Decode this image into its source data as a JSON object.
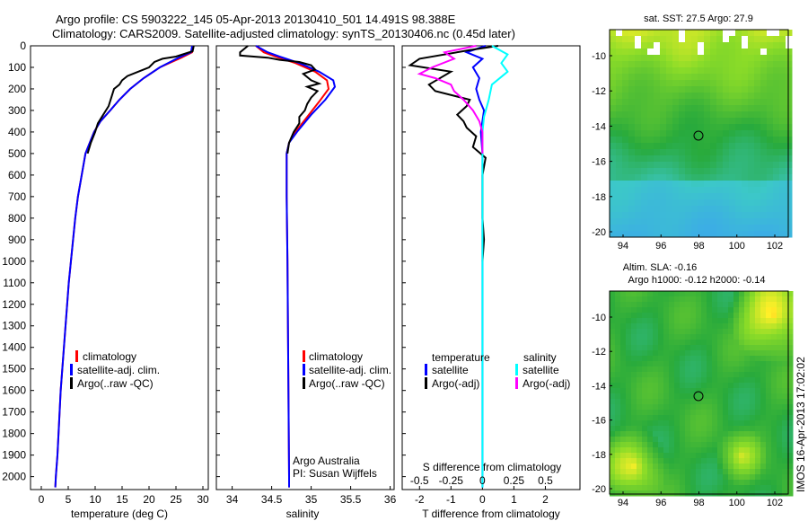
{
  "header": {
    "line1": "Argo profile: CS 5903222_145 05-Apr-2013 20130410_501 14.491S 98.388E",
    "line2": "Climatology: CARS2009. Satellite-adjusted climatology: synTS_20130406.nc (0.45d later)"
  },
  "side_label": "IMOS 16-Apr-2013 17:02:02",
  "colors": {
    "clim": "#ff0000",
    "sat": "#0000ff",
    "argo": "#000000",
    "sat_s": "#00ffff",
    "argo_s": "#ff00ff"
  },
  "chart_data": [
    {
      "type": "line",
      "id": "temperature",
      "xlabel": "temperature (deg C)",
      "ylabel": "",
      "xlim": [
        -2,
        31
      ],
      "ylim": [
        2060,
        0
      ],
      "xticks": [
        0,
        5,
        10,
        15,
        20,
        25,
        30
      ],
      "xtick_labels": [
        "0",
        "5",
        "10",
        "15",
        "20",
        "25",
        "30"
      ],
      "yticks": [
        0,
        100,
        200,
        300,
        400,
        500,
        600,
        700,
        800,
        900,
        1000,
        1100,
        1200,
        1300,
        1400,
        1500,
        1600,
        1700,
        1800,
        1900,
        2000
      ],
      "ytick_labels": [
        "0",
        "100",
        "200",
        "300",
        "400",
        "500",
        "600",
        "700",
        "800",
        "900",
        "1000",
        "1100",
        "1200",
        "1300",
        "1400",
        "1500",
        "1600",
        "1700",
        "1800",
        "1900",
        "2000"
      ],
      "legend": [
        "climatology",
        "satellite-adj. clim.",
        "Argo(..raw -QC)"
      ],
      "series": [
        {
          "name": "climatology",
          "color": "clim",
          "points": [
            [
              28.2,
              0
            ],
            [
              28.0,
              30
            ],
            [
              26,
              55
            ],
            [
              22,
              100
            ],
            [
              19,
              150
            ],
            [
              16.5,
              200
            ],
            [
              14.5,
              250
            ],
            [
              12.8,
              300
            ],
            [
              11,
              350
            ],
            [
              9.8,
              400
            ],
            [
              9,
              450
            ],
            [
              8.2,
              500
            ],
            [
              7.5,
              600
            ],
            [
              6.8,
              700
            ],
            [
              6.3,
              800
            ],
            [
              5.9,
              900
            ],
            [
              5.5,
              1000
            ],
            [
              5.1,
              1100
            ],
            [
              4.8,
              1200
            ],
            [
              4.5,
              1300
            ],
            [
              4.2,
              1400
            ],
            [
              3.9,
              1500
            ],
            [
              3.6,
              1600
            ],
            [
              3.4,
              1700
            ],
            [
              3.2,
              1800
            ],
            [
              3.0,
              1900
            ],
            [
              2.7,
              2000
            ],
            [
              2.6,
              2050
            ]
          ]
        },
        {
          "name": "satellite-adj. clim.",
          "color": "sat",
          "points": [
            [
              28.0,
              0
            ],
            [
              27.8,
              30
            ],
            [
              25.5,
              55
            ],
            [
              22,
              100
            ],
            [
              19,
              150
            ],
            [
              16.5,
              200
            ],
            [
              14.5,
              250
            ],
            [
              12.8,
              300
            ],
            [
              11,
              350
            ],
            [
              9.8,
              400
            ],
            [
              9,
              450
            ],
            [
              8.2,
              500
            ],
            [
              7.5,
              600
            ],
            [
              6.8,
              700
            ],
            [
              6.3,
              800
            ],
            [
              5.9,
              900
            ],
            [
              5.5,
              1000
            ],
            [
              5.1,
              1100
            ],
            [
              4.8,
              1200
            ],
            [
              4.5,
              1300
            ],
            [
              4.2,
              1400
            ],
            [
              3.9,
              1500
            ],
            [
              3.6,
              1600
            ],
            [
              3.4,
              1700
            ],
            [
              3.2,
              1800
            ],
            [
              3.0,
              1900
            ],
            [
              2.7,
              2000
            ],
            [
              2.6,
              2050
            ]
          ]
        },
        {
          "name": "Argo(..raw -QC)",
          "color": "argo",
          "points": [
            [
              28.3,
              0
            ],
            [
              28.1,
              25
            ],
            [
              25,
              50
            ],
            [
              22.5,
              60
            ],
            [
              21,
              75
            ],
            [
              20,
              100
            ],
            [
              18,
              120
            ],
            [
              16,
              140
            ],
            [
              15,
              160
            ],
            [
              14.5,
              180
            ],
            [
              13.5,
              200
            ],
            [
              13,
              240
            ],
            [
              12.5,
              280
            ],
            [
              11.5,
              320
            ],
            [
              10.5,
              360
            ],
            [
              10,
              400
            ],
            [
              9.2,
              450
            ],
            [
              8.6,
              500
            ]
          ]
        }
      ]
    },
    {
      "type": "line",
      "id": "salinity",
      "xlabel": "salinity",
      "xlim": [
        33.8,
        36.05
      ],
      "ylim": [
        2060,
        0
      ],
      "xticks": [
        34,
        34.5,
        35,
        35.5,
        36
      ],
      "xtick_labels": [
        "34",
        "34.5",
        "35",
        "35.5",
        "36"
      ],
      "legend": [
        "climatology",
        "satellite-adj. clim.",
        "Argo(..raw -QC)"
      ],
      "annotation": [
        "Argo Australia",
        "PI: Susan Wijffels"
      ],
      "series": [
        {
          "name": "climatology",
          "color": "clim",
          "points": [
            [
              34.3,
              0
            ],
            [
              34.4,
              30
            ],
            [
              34.55,
              50
            ],
            [
              34.8,
              80
            ],
            [
              35.05,
              120
            ],
            [
              35.2,
              160
            ],
            [
              35.22,
              200
            ],
            [
              35.1,
              260
            ],
            [
              34.95,
              330
            ],
            [
              34.8,
              400
            ],
            [
              34.72,
              450
            ],
            [
              34.69,
              500
            ],
            [
              34.69,
              700
            ],
            [
              34.7,
              1000
            ],
            [
              34.71,
              1500
            ],
            [
              34.72,
              2000
            ],
            [
              34.72,
              2050
            ]
          ]
        },
        {
          "name": "satellite-adj. clim.",
          "color": "sat",
          "points": [
            [
              34.3,
              0
            ],
            [
              34.45,
              30
            ],
            [
              34.6,
              50
            ],
            [
              34.85,
              80
            ],
            [
              35.1,
              120
            ],
            [
              35.28,
              160
            ],
            [
              35.3,
              190
            ],
            [
              35.18,
              250
            ],
            [
              35.0,
              320
            ],
            [
              34.82,
              400
            ],
            [
              34.72,
              450
            ],
            [
              34.69,
              500
            ],
            [
              34.69,
              700
            ],
            [
              34.7,
              1000
            ],
            [
              34.71,
              1500
            ],
            [
              34.72,
              2000
            ],
            [
              34.72,
              2050
            ]
          ]
        },
        {
          "name": "Argo(..raw -QC)",
          "color": "argo",
          "points": [
            [
              34.2,
              0
            ],
            [
              34.1,
              30
            ],
            [
              34.1,
              45
            ],
            [
              34.45,
              55
            ],
            [
              34.6,
              65
            ],
            [
              34.85,
              75
            ],
            [
              35.0,
              90
            ],
            [
              35.05,
              110
            ],
            [
              34.9,
              130
            ],
            [
              35.0,
              160
            ],
            [
              35.1,
              175
            ],
            [
              34.95,
              190
            ],
            [
              35.08,
              210
            ],
            [
              35.0,
              240
            ],
            [
              34.95,
              270
            ],
            [
              34.92,
              300
            ],
            [
              34.85,
              330
            ],
            [
              34.85,
              360
            ],
            [
              34.78,
              400
            ],
            [
              34.72,
              450
            ],
            [
              34.7,
              500
            ]
          ]
        }
      ]
    },
    {
      "type": "line",
      "id": "difference",
      "xlabel": "T difference from climatology",
      "xlabel_top": "S difference from climatology",
      "xlim": [
        -2.55,
        3.1
      ],
      "ylim": [
        2060,
        0
      ],
      "xticks": [
        -2,
        -1,
        0,
        1,
        2
      ],
      "xtick_labels": [
        "-2",
        "-1",
        "0",
        "1",
        "2"
      ],
      "top_ticks": [
        -0.5,
        -0.25,
        0,
        0.25,
        0.5
      ],
      "top_tick_labels": [
        "-0.5",
        "-0.25",
        "0",
        "0.25",
        "0.5"
      ],
      "legend": [
        "temperature",
        "satellite",
        "Argo(-adj)",
        "salinity",
        "satellite",
        "Argo(-adj)"
      ],
      "series": [
        {
          "name": "temperature satellite",
          "color": "sat",
          "points": [
            [
              0.1,
              0
            ],
            [
              -0.5,
              30
            ],
            [
              0,
              60
            ],
            [
              -0.3,
              100
            ],
            [
              -0.1,
              150
            ],
            [
              -0.2,
              200
            ],
            [
              -0.1,
              250
            ],
            [
              0.05,
              300
            ],
            [
              -0.05,
              400
            ],
            [
              0,
              500
            ],
            [
              0,
              700
            ],
            [
              0,
              1000
            ],
            [
              0,
              1500
            ],
            [
              0,
              2050
            ]
          ]
        },
        {
          "name": "temperature Argo(-adj)",
          "color": "argo",
          "points": [
            [
              0.5,
              0
            ],
            [
              -0.4,
              20
            ],
            [
              -2.0,
              60
            ],
            [
              -2.3,
              90
            ],
            [
              -1.0,
              120
            ],
            [
              -1.7,
              180
            ],
            [
              -1.5,
              210
            ],
            [
              -0.4,
              250
            ],
            [
              -0.5,
              280
            ],
            [
              -0.8,
              320
            ],
            [
              -0.6,
              350
            ],
            [
              -0.5,
              380
            ],
            [
              -0.2,
              420
            ],
            [
              -0.3,
              470
            ],
            [
              0.1,
              520
            ],
            [
              0,
              600
            ],
            [
              0,
              800
            ],
            [
              0.05,
              900
            ],
            [
              0,
              1000
            ]
          ]
        },
        {
          "name": "salinity satellite",
          "color": "sat_s",
          "points": [
            [
              0.3,
              0
            ],
            [
              0.8,
              40
            ],
            [
              0.6,
              80
            ],
            [
              0.8,
              120
            ],
            [
              0.3,
              180
            ],
            [
              0.2,
              250
            ],
            [
              0.05,
              330
            ],
            [
              0,
              400
            ],
            [
              0,
              600
            ],
            [
              0,
              1000
            ],
            [
              0,
              1500
            ],
            [
              0,
              2050
            ]
          ]
        },
        {
          "name": "salinity Argo(-adj)",
          "color": "argo_s",
          "points": [
            [
              -0.2,
              0
            ],
            [
              -1.2,
              30
            ],
            [
              -0.9,
              60
            ],
            [
              -1.6,
              100
            ],
            [
              -2.0,
              130
            ],
            [
              -1.5,
              150
            ],
            [
              -1.0,
              180
            ],
            [
              -0.9,
              210
            ],
            [
              -0.6,
              250
            ],
            [
              -0.3,
              300
            ],
            [
              -0.1,
              350
            ],
            [
              0,
              400
            ],
            [
              0,
              500
            ]
          ]
        }
      ]
    }
  ],
  "maps": [
    {
      "id": "sst",
      "title": "sat. SST: 27.5 Argo: 27.9",
      "xticks": [
        "94",
        "96",
        "98",
        "100",
        "102"
      ],
      "yticks": [
        "-10",
        "-12",
        "-14",
        "-16",
        "-18",
        "-20"
      ]
    },
    {
      "id": "sla",
      "title_l1": "Altim. SLA: -0.16",
      "title_l2": "Argo h1000: -0.12 h2000: -0.14",
      "xticks": [
        "94",
        "96",
        "98",
        "100",
        "102"
      ],
      "yticks": [
        "-10",
        "-12",
        "-14",
        "-16",
        "-18",
        "-20"
      ]
    }
  ]
}
